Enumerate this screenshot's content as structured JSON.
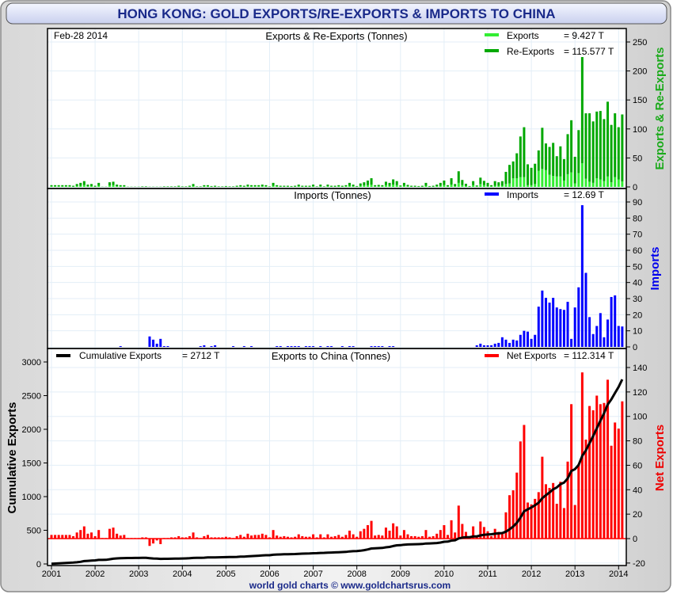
{
  "title": "HONG KONG: GOLD EXPORTS/RE-EXPORTS & IMPORTS TO CHINA",
  "date_label": "Feb-28  2014",
  "footer": "world gold charts © www.goldchartsrus.com",
  "colors": {
    "exports": "#33ee33",
    "re_exports": "#00a800",
    "imports": "#0000ff",
    "net_exports": "#ff0000",
    "cumulative": "#000000",
    "title": "#1a2a8a"
  },
  "chart_data": [
    {
      "type": "bar",
      "stacked": true,
      "title": "Exports & Re-Exports (Tonnes)",
      "ylabel": "Exports & Re-Exports",
      "ylim": [
        0,
        275
      ],
      "yticks": [
        "0",
        "50",
        "100",
        "150",
        "200",
        "250"
      ],
      "axis_side": "right",
      "grid": true,
      "legend_placement": "top-right",
      "legend": [
        {
          "name": "Exports",
          "value": "= 9.427 T"
        },
        {
          "name": "Re-Exports",
          "value": "= 115.577 T"
        }
      ],
      "x_start": "2001-01",
      "x_end": "2014-02",
      "x_frequency": "monthly",
      "series": [
        {
          "name": "Exports",
          "values": [
            1,
            1,
            1,
            1,
            1,
            1,
            0.5,
            1.5,
            2,
            3,
            1,
            1.5,
            0.5,
            2,
            0.2,
            0.2,
            2.5,
            3,
            1,
            1,
            1,
            0.2,
            0.2,
            0.2,
            0.2,
            0.3,
            0.3,
            0.2,
            0.2,
            0.2,
            0.2,
            0.3,
            0.3,
            0.3,
            0.3,
            0.5,
            0.3,
            0.3,
            0.5,
            1.5,
            0.3,
            0.3,
            1,
            1,
            0.5,
            0.5,
            0.3,
            0.3,
            0.5,
            0.3,
            0.3,
            0.5,
            1,
            0.5,
            1,
            1,
            1,
            1,
            1,
            1,
            0.3,
            2,
            1,
            0.5,
            0.5,
            0.5,
            0.5,
            0.5,
            1,
            0.5,
            0.5,
            0.5,
            1,
            0.3,
            1,
            0.3,
            1,
            0.5,
            0.5,
            1,
            0.5,
            1,
            2,
            1,
            0.5,
            2,
            2.5,
            3,
            4,
            1,
            1,
            1,
            3,
            2,
            4,
            3,
            1,
            2,
            1,
            0.5,
            0.5,
            0.5,
            0.5,
            2,
            0.5,
            0.5,
            1,
            2,
            3,
            1,
            4,
            1.5,
            7,
            3,
            1.5,
            0.5,
            3,
            1,
            5,
            3,
            1,
            1,
            2,
            2,
            2,
            5,
            6,
            15,
            15,
            17,
            17,
            3,
            3,
            5,
            28,
            31,
            29,
            21,
            19,
            18,
            18,
            11,
            22,
            25,
            6,
            24,
            41,
            14,
            9,
            7,
            15,
            13,
            10,
            18,
            8,
            17,
            13,
            9.427
          ]
        },
        {
          "name": "Re-Exports",
          "values": [
            2,
            2,
            2,
            2,
            2,
            2,
            1.5,
            3.5,
            5,
            7,
            3,
            3.5,
            1.5,
            5,
            0.3,
            0.3,
            5.5,
            6,
            3,
            2,
            2,
            0.3,
            0.3,
            0.3,
            0.3,
            0.7,
            0.7,
            0.3,
            0.3,
            0.3,
            0.3,
            0.7,
            0.7,
            0.7,
            0.7,
            1.5,
            0.7,
            0.7,
            1.5,
            3.5,
            0.7,
            0.7,
            2,
            2,
            1,
            1.5,
            0.7,
            0.7,
            1,
            0.7,
            0.7,
            1.5,
            2,
            1.5,
            3,
            2,
            2,
            2,
            3,
            2,
            0.7,
            5,
            2,
            1.5,
            1.5,
            1.5,
            1,
            1.5,
            3,
            1.5,
            1.5,
            1.5,
            3,
            0.7,
            3,
            0.7,
            3,
            1.5,
            1.5,
            2,
            1.5,
            2,
            5,
            3,
            1,
            4,
            5.5,
            8,
            11,
            2,
            2.5,
            2,
            6,
            5,
            9,
            7,
            1.5,
            5,
            2.5,
            1.5,
            1.5,
            1,
            1.5,
            5,
            1,
            1.5,
            3,
            5,
            8,
            2,
            11,
            3.5,
            20,
            9,
            4,
            1,
            7,
            1.5,
            11,
            7.5,
            6,
            2,
            8,
            6,
            8,
            21,
            32,
            29,
            43,
            70,
            86,
            36,
            30,
            35,
            35,
            71,
            46,
            48,
            57,
            35,
            52,
            37,
            69,
            90,
            46,
            74,
            183,
            113,
            118,
            106,
            115,
            118,
            107,
            129,
            99,
            110,
            90,
            115.577
          ]
        }
      ]
    },
    {
      "type": "bar",
      "title": "Imports (Tonnes)",
      "ylabel": "Imports",
      "ylim": [
        0,
        98
      ],
      "yticks": [
        "0",
        "10",
        "20",
        "30",
        "40",
        "50",
        "60",
        "70",
        "80",
        "90"
      ],
      "axis_side": "right",
      "grid": true,
      "legend_placement": "top-right",
      "legend": [
        {
          "name": "Imports",
          "value": "= 12.69 T"
        }
      ],
      "series": [
        {
          "name": "Imports",
          "values": [
            0,
            0,
            0,
            0,
            0,
            0,
            0,
            0,
            0,
            0,
            0,
            0,
            0,
            0,
            0,
            0,
            0,
            0,
            0,
            0.5,
            0,
            0,
            0,
            0,
            0,
            0,
            0,
            6.5,
            4.5,
            2,
            5,
            0.5,
            0.5,
            0,
            0,
            0,
            0,
            0,
            0,
            0,
            0,
            0.5,
            1,
            0,
            0.5,
            1,
            0,
            0,
            0,
            0,
            0.5,
            0,
            0,
            0.5,
            0,
            0.5,
            0,
            0,
            0,
            0,
            0,
            0,
            0.5,
            0.5,
            0,
            0.5,
            0.5,
            0.5,
            0.5,
            0,
            0.5,
            0.5,
            0.5,
            0,
            0.5,
            0,
            0.5,
            0.5,
            0,
            0,
            0.5,
            0,
            0.5,
            0.5,
            0,
            0,
            0,
            0,
            0.5,
            0.5,
            0.5,
            0.5,
            0,
            0.5,
            0.5,
            0,
            0,
            0,
            0,
            0,
            0,
            0,
            0,
            0,
            0,
            0,
            0,
            0,
            0,
            0,
            0,
            0,
            0,
            0,
            0,
            0,
            0,
            1,
            2,
            1,
            1,
            1,
            2,
            2.5,
            6,
            4.5,
            2.5,
            4.5,
            4,
            7.5,
            10,
            9.5,
            5,
            7.5,
            25,
            35,
            30.5,
            27.5,
            30.5,
            24.5,
            23.5,
            23,
            28,
            5,
            24.5,
            37,
            88,
            46,
            18.5,
            8,
            13,
            21,
            6,
            17,
            31,
            32,
            13,
            12.69
          ]
        }
      ]
    },
    {
      "type": "bar+line",
      "title": "Exports to China (Tonnes)",
      "ylabel_left": "Cumulative Exports",
      "ylabel_right": "Net Exports",
      "ylim_left": [
        0,
        3000
      ],
      "ylim_right": [
        -20,
        145
      ],
      "yticks_left": [
        "0",
        "500",
        "1000",
        "1500",
        "2000",
        "2500",
        "3000"
      ],
      "yticks_right": [
        "-20",
        "0",
        "20",
        "40",
        "60",
        "80",
        "100",
        "120",
        "140"
      ],
      "xticks": [
        "2001",
        "2002",
        "2003",
        "2004",
        "2005",
        "2006",
        "2007",
        "2008",
        "2009",
        "2010",
        "2011",
        "2012",
        "2013",
        "2014"
      ],
      "grid": true,
      "legend": [
        {
          "name": "Cumulative Exports",
          "value": "= 2712 T",
          "placement": "top-left"
        },
        {
          "name": "Net Exports",
          "value": "= 112.314 T",
          "placement": "top-right"
        }
      ],
      "series": [
        {
          "name": "Net Exports",
          "values": [
            3,
            3,
            3,
            3,
            3,
            3,
            2,
            5,
            7,
            10,
            4,
            5,
            2,
            7,
            0.5,
            0.5,
            8,
            9,
            4,
            2.5,
            3,
            0.5,
            0.5,
            0.5,
            0.5,
            1,
            1,
            -6,
            -4,
            -1.5,
            -4.5,
            0.5,
            0.5,
            1,
            1,
            2,
            1,
            1,
            2,
            5,
            1,
            0.5,
            2,
            3,
            1,
            1,
            1,
            1,
            1.5,
            1,
            0.5,
            2,
            3,
            1.5,
            4,
            2.5,
            3,
            3,
            4,
            3,
            1,
            7,
            2.5,
            1.5,
            2,
            1.5,
            1,
            1.5,
            3.5,
            2,
            1.5,
            1.5,
            3.5,
            1,
            3.5,
            1,
            3.5,
            1.5,
            2,
            3,
            1.5,
            3,
            6.5,
            3.5,
            1.5,
            6,
            8,
            11,
            14.5,
            2.5,
            3,
            2.5,
            9,
            6.5,
            12.5,
            10,
            2.5,
            7,
            3.5,
            2,
            2,
            1.5,
            2,
            7,
            1.5,
            2,
            4,
            7,
            11,
            3,
            15,
            5,
            27,
            12,
            5.5,
            1.5,
            10,
            1.5,
            14,
            9.5,
            6,
            2,
            8,
            5.5,
            4,
            21.5,
            35.5,
            39.5,
            54,
            79.5,
            93,
            29.5,
            28,
            32.5,
            38,
            67,
            44.5,
            41.5,
            45.5,
            28.5,
            46.5,
            25,
            63,
            110,
            27.5,
            61,
            136,
            81,
            108.5,
            105,
            117,
            110,
            111,
            130,
            76,
            95,
            90,
            112.314
          ]
        },
        {
          "name": "Cumulative Exports",
          "derived_from": "running sum of Net Exports",
          "final_value": 2712
        }
      ]
    }
  ]
}
